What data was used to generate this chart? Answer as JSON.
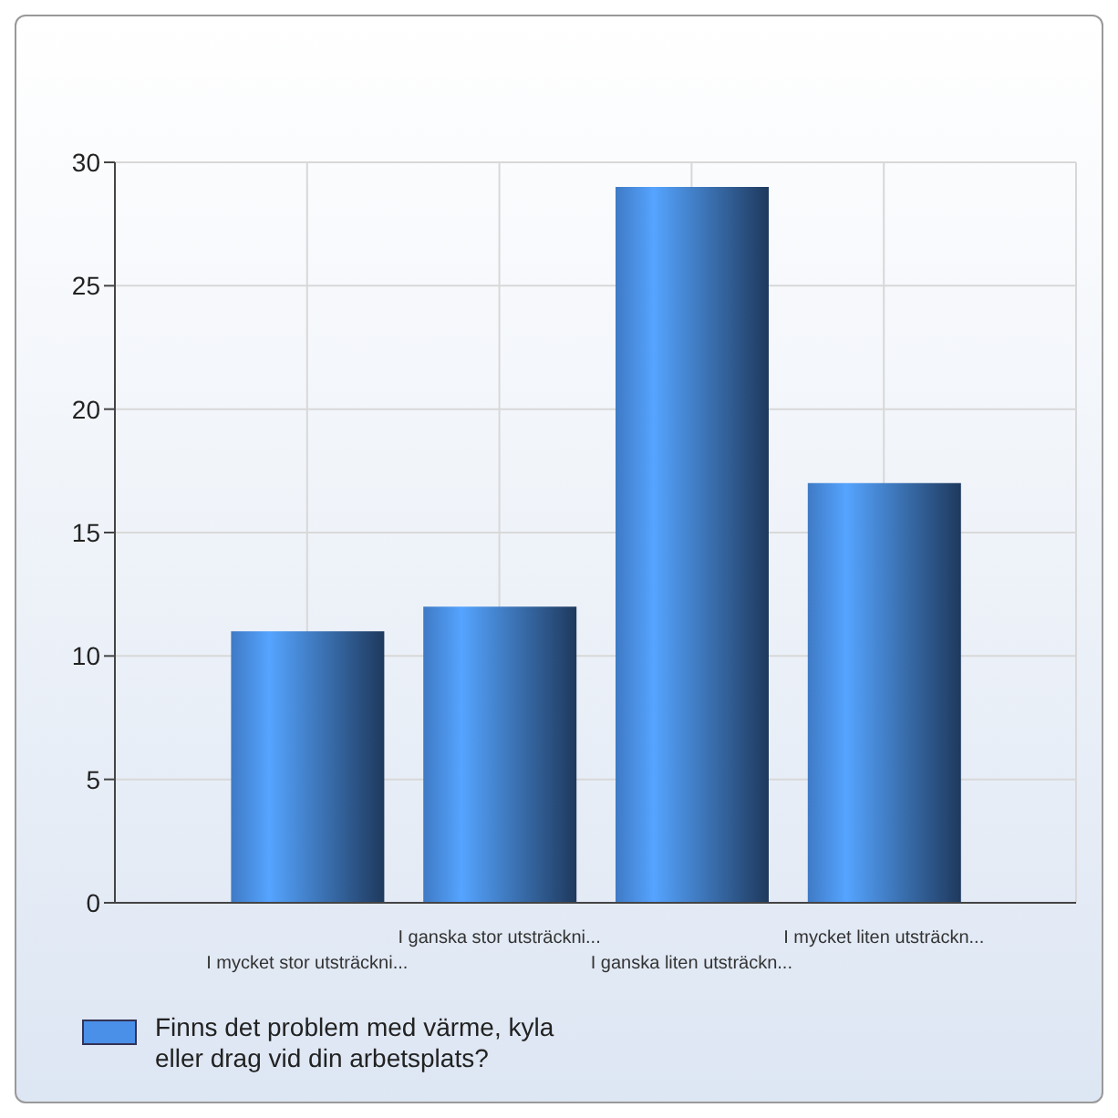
{
  "chart_data": {
    "type": "bar",
    "categories": [
      "I mycket stor utsträckni...",
      "I ganska stor utsträckni...",
      "I ganska liten utsträckn...",
      "I mycket liten utsträckn..."
    ],
    "series": [
      {
        "name": "Finns det problem med värme, kyla eller drag vid din arbetsplats?",
        "color": "#4a8fe8",
        "values": [
          11,
          12,
          29,
          17
        ]
      }
    ],
    "ylim": [
      0,
      30
    ],
    "yticks": [
      0,
      5,
      10,
      15,
      20,
      25,
      30
    ],
    "grid": true,
    "legend": "bottom"
  }
}
